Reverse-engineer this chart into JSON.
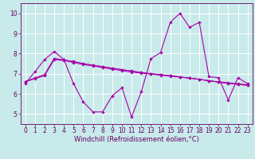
{
  "background_color": "#c8eaea",
  "line_color": "#aa00aa",
  "grid_color": "#ffffff",
  "xlabel": "Windchill (Refroidissement éolien,°C)",
  "x_hours": [
    0,
    1,
    2,
    3,
    4,
    5,
    6,
    7,
    8,
    9,
    10,
    11,
    12,
    13,
    14,
    15,
    16,
    17,
    18,
    19,
    20,
    21,
    22,
    23
  ],
  "series1": [
    6.5,
    7.1,
    7.7,
    8.1,
    7.7,
    6.5,
    5.6,
    5.1,
    5.1,
    5.9,
    6.3,
    4.85,
    6.1,
    7.75,
    8.05,
    9.55,
    10.0,
    9.3,
    9.55,
    6.85,
    6.8,
    5.7,
    6.8,
    6.5
  ],
  "line2": [
    6.6,
    6.75,
    6.9,
    7.7,
    7.65,
    7.55,
    7.45,
    7.38,
    7.3,
    7.22,
    7.15,
    7.08,
    7.02,
    6.98,
    6.92,
    6.88,
    6.82,
    6.78,
    6.72,
    6.65,
    6.6,
    6.55,
    6.5,
    6.45
  ],
  "line3": [
    6.6,
    6.78,
    6.95,
    7.75,
    7.68,
    7.6,
    7.5,
    7.42,
    7.35,
    7.27,
    7.2,
    7.13,
    7.06,
    7.0,
    6.95,
    6.9,
    6.84,
    6.78,
    6.72,
    6.65,
    6.58,
    6.52,
    6.47,
    6.42
  ],
  "line4": [
    6.6,
    6.78,
    6.95,
    7.75,
    7.68,
    7.6,
    7.5,
    7.42,
    7.35,
    7.27,
    7.2,
    7.13,
    7.06,
    7.0,
    6.95,
    6.9,
    6.84,
    6.78,
    6.72,
    6.65,
    6.58,
    6.52,
    6.47,
    6.42
  ],
  "ylim": [
    4.5,
    10.5
  ],
  "xlim": [
    -0.5,
    23.5
  ],
  "yticks": [
    5,
    6,
    7,
    8,
    9,
    10
  ],
  "xticks": [
    0,
    1,
    2,
    3,
    4,
    5,
    6,
    7,
    8,
    9,
    10,
    11,
    12,
    13,
    14,
    15,
    16,
    17,
    18,
    19,
    20,
    21,
    22,
    23
  ],
  "tick_fontsize": 5.5,
  "xlabel_fontsize": 6.0,
  "tick_color": "#660066",
  "spine_color": "#660066"
}
